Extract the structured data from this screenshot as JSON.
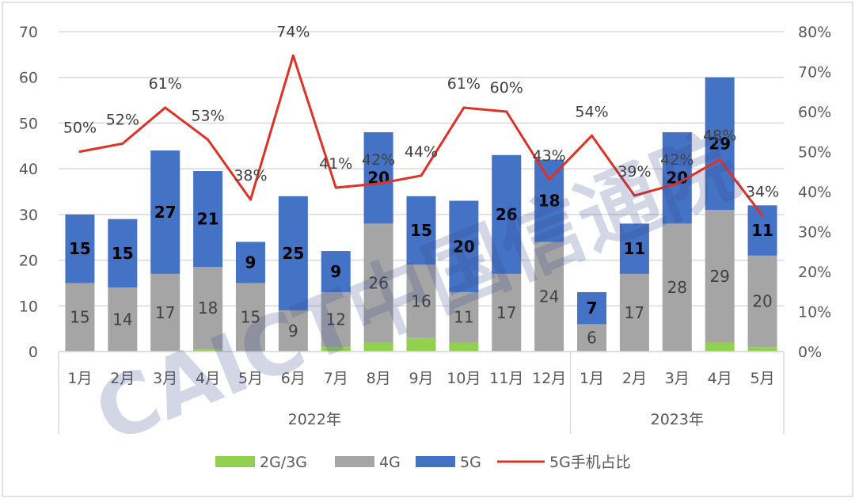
{
  "chart_data": {
    "type": "bar",
    "stacked": true,
    "groups": [
      {
        "label": "2022年",
        "categories": [
          "1月",
          "2月",
          "3月",
          "4月",
          "5月",
          "6月",
          "7月",
          "8月",
          "9月",
          "10月",
          "11月",
          "12月"
        ]
      },
      {
        "label": "2023年",
        "categories": [
          "1月",
          "2月",
          "3月",
          "4月",
          "5月"
        ]
      }
    ],
    "categories": [
      "1月",
      "2月",
      "3月",
      "4月",
      "5月",
      "6月",
      "7月",
      "8月",
      "9月",
      "10月",
      "11月",
      "12月",
      "1月",
      "2月",
      "3月",
      "4月",
      "5月"
    ],
    "series": [
      {
        "name": "2G/3G",
        "color": "#92D050",
        "values": [
          0,
          0,
          0,
          0.5,
          0,
          0,
          1,
          2,
          3,
          2,
          0,
          0,
          0,
          0,
          0,
          2,
          1
        ]
      },
      {
        "name": "4G",
        "color": "#A5A5A5",
        "values": [
          15,
          14,
          17,
          18,
          15,
          9,
          12,
          26,
          16,
          11,
          17,
          24,
          6,
          17,
          28,
          29,
          20
        ]
      },
      {
        "name": "5G",
        "color": "#4472C4",
        "values": [
          15,
          15,
          27,
          21,
          9,
          25,
          9,
          20,
          15,
          20,
          26,
          18,
          7,
          11,
          20,
          29,
          11
        ]
      }
    ],
    "line_series": {
      "name": "5G手机占比",
      "color": "#E03127",
      "axis": "right",
      "values": [
        50,
        52,
        61,
        53,
        38,
        74,
        41,
        42,
        44,
        61,
        60,
        43,
        54,
        39,
        42,
        48,
        34
      ],
      "labels": [
        "50%",
        "52%",
        "61%",
        "53%",
        "38%",
        "74%",
        "41%",
        "42%",
        "44%",
        "61%",
        "60%",
        "43%",
        "54%",
        "39%",
        "42%",
        "48%",
        "34%"
      ]
    },
    "y_left": {
      "min": 0,
      "max": 70,
      "ticks": [
        "0",
        "10",
        "20",
        "30",
        "40",
        "50",
        "60",
        "70"
      ]
    },
    "y_right": {
      "min": 0,
      "max": 80,
      "ticks": [
        "0%",
        "10%",
        "20%",
        "30%",
        "40%",
        "50%",
        "60%",
        "70%",
        "80%"
      ]
    },
    "grid": true,
    "legend_position": "bottom",
    "watermark": "CAICT中国信通院"
  }
}
